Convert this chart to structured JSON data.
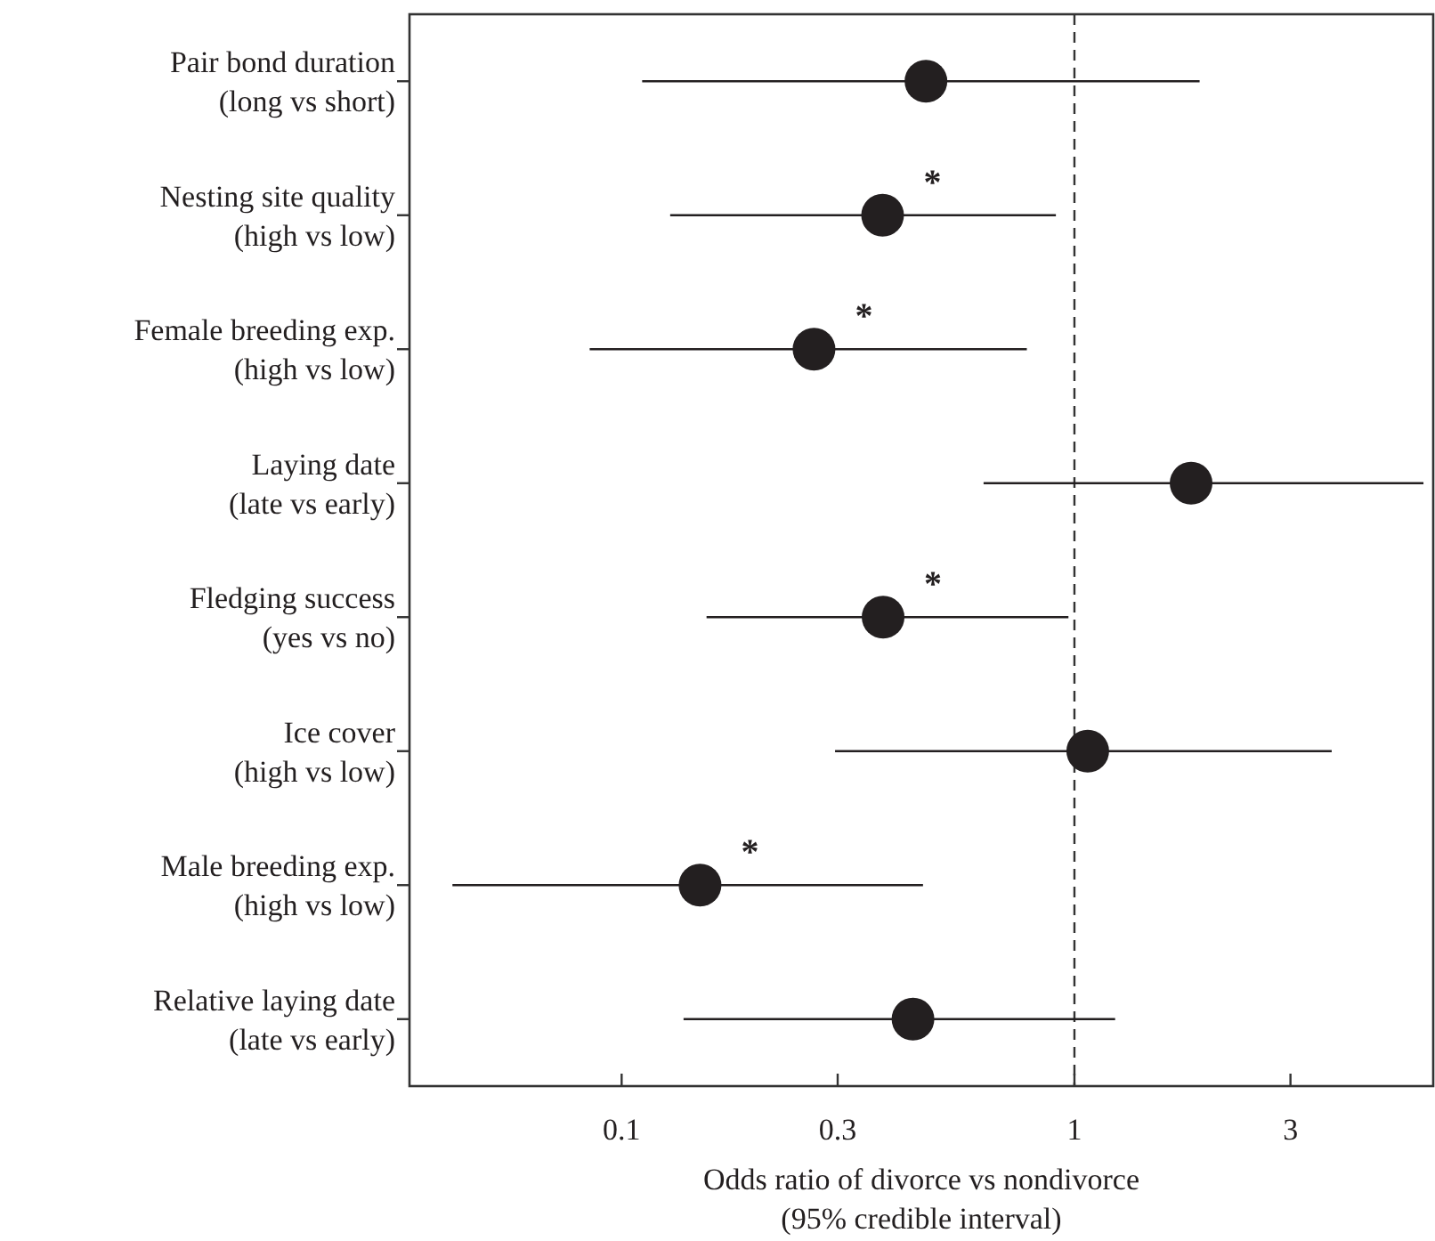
{
  "chart_data": {
    "type": "scatter",
    "orientation": "horizontal",
    "xlabel": "Odds ratio of divorce vs nondivorce\n(95% credible interval)",
    "categories": [
      "Pair bond duration\n(long vs short)",
      "Nesting site quality\n(high vs low)",
      "Female breeding exp.\n(high vs low)",
      "Laying date\n(late vs early)",
      "Fledging success\n(yes vs no)",
      "Ice cover\n(high vs low)",
      "Male breeding exp.\n(high vs low)",
      "Relative laying date\n(late vs early)"
    ],
    "color": "#231f20",
    "values": [
      0.47,
      0.377,
      0.266,
      1.81,
      0.378,
      1.07,
      0.149,
      0.44
    ],
    "errors": [
      [
        0.111,
        1.89
      ],
      [
        0.128,
        0.91
      ],
      [
        0.085,
        0.785
      ],
      [
        0.63,
        5.9
      ],
      [
        0.154,
        0.97
      ],
      [
        0.296,
        3.7
      ],
      [
        0.0423,
        0.463
      ],
      [
        0.137,
        1.23
      ]
    ],
    "log": "x",
    "xlim": [
      0.034,
      6.2
    ],
    "xticks": [
      0.1,
      0.3,
      1,
      3
    ],
    "marker": "circle",
    "grid": false,
    "ref_lines": [
      {
        "axis": "x",
        "value": 1,
        "line_style": "dashed"
      }
    ],
    "annotations": [
      {
        "text": "*",
        "x": 0.377,
        "y": "Nesting site quality\n(high vs low)"
      },
      {
        "text": "*",
        "x": 0.266,
        "y": "Female breeding exp.\n(high vs low)"
      },
      {
        "text": "*",
        "x": 0.378,
        "y": "Fledging success\n(yes vs no)"
      },
      {
        "text": "*",
        "x": 0.149,
        "y": "Male breeding exp.\n(high vs low)"
      }
    ]
  }
}
